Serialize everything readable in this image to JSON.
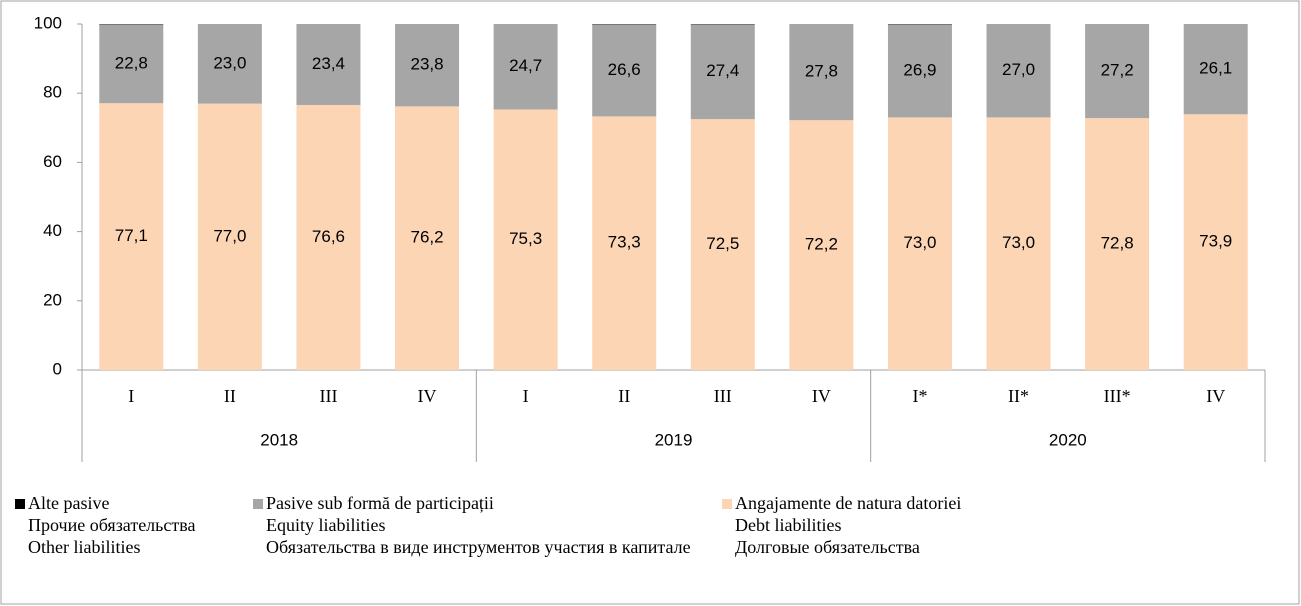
{
  "chart_data": {
    "type": "stacked_bar",
    "categories": [
      "I",
      "II",
      "III",
      "IV",
      "I",
      "II",
      "III",
      "IV",
      "I*",
      "II*",
      "III*",
      "IV"
    ],
    "groups": [
      {
        "label": "2018",
        "span": 4
      },
      {
        "label": "2019",
        "span": 4
      },
      {
        "label": "2020",
        "span": 4
      }
    ],
    "series": [
      {
        "name": [
          "Angajamente de natura datoriei",
          "Debt liabilities",
          "Долговые обязательства"
        ],
        "color": "#fcd5b5",
        "values": [
          77.1,
          77.0,
          76.6,
          76.2,
          75.3,
          73.3,
          72.5,
          72.2,
          73.0,
          73.0,
          72.8,
          73.9
        ],
        "value_labels": [
          "77,1",
          "77,0",
          "76,6",
          "76,2",
          "75,3",
          "73,3",
          "72,5",
          "72,2",
          "73,0",
          "73,0",
          "72,8",
          "73,9"
        ]
      },
      {
        "name": [
          "Pasive sub formă de participații",
          "Equity liabilities",
          "Обязательства в виде инструментов участия в капитале"
        ],
        "color": "#a6a6a6",
        "values": [
          22.8,
          23.0,
          23.4,
          23.8,
          24.7,
          26.6,
          27.4,
          27.8,
          26.9,
          27.0,
          27.2,
          26.1
        ],
        "value_labels": [
          "22,8",
          "23,0",
          "23,4",
          "23,8",
          "24,7",
          "26,6",
          "27,4",
          "27,8",
          "26,9",
          "27,0",
          "27,2",
          "26,1"
        ]
      },
      {
        "name": [
          "Alte pasive",
          "Прочие обязательства",
          "Other liabilities"
        ],
        "color": "#000000",
        "values": [
          0.1,
          0,
          0,
          0,
          0,
          0.1,
          0.1,
          0,
          0.1,
          0,
          0,
          0
        ]
      }
    ],
    "legend_order": [
      2,
      1,
      0
    ],
    "ylim": [
      0,
      100
    ],
    "yticks": [
      0,
      20,
      40,
      60,
      80,
      100
    ],
    "grid": false
  }
}
